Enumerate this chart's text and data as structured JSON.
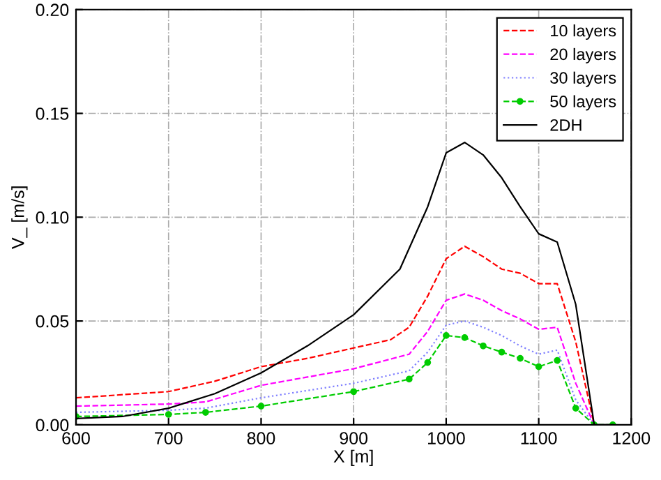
{
  "chart_data": {
    "type": "line",
    "xlabel": "X [m]",
    "ylabel": "V_ [m/s]",
    "xlim": [
      600,
      1200
    ],
    "ylim": [
      0,
      0.2
    ],
    "xticks": [
      600,
      700,
      800,
      900,
      1000,
      1100,
      1200
    ],
    "yticks": [
      {
        "value": 0,
        "label": "0.00"
      },
      {
        "value": 0.05,
        "label": "0.05"
      },
      {
        "value": 0.1,
        "label": "0.10"
      },
      {
        "value": 0.15,
        "label": "0.15"
      },
      {
        "value": 0.2,
        "label": "0.20"
      }
    ],
    "grid": true,
    "legend": "top right",
    "series": [
      {
        "name": "10 layers",
        "color": "#ff0000",
        "line_style": "dashed",
        "x": [
          600,
          700,
          750,
          800,
          850,
          900,
          940,
          960,
          980,
          1000,
          1020,
          1040,
          1060,
          1080,
          1100,
          1120,
          1140,
          1160
        ],
        "values": [
          0.013,
          0.016,
          0.021,
          0.028,
          0.032,
          0.037,
          0.041,
          0.047,
          0.062,
          0.08,
          0.086,
          0.081,
          0.075,
          0.073,
          0.068,
          0.068,
          0.04,
          0
        ]
      },
      {
        "name": "20 layers",
        "color": "#ff00ff",
        "line_style": "dashed",
        "x": [
          600,
          700,
          740,
          800,
          900,
          960,
          980,
          1000,
          1020,
          1040,
          1060,
          1080,
          1100,
          1120,
          1140,
          1160
        ],
        "values": [
          0.009,
          0.01,
          0.011,
          0.019,
          0.027,
          0.034,
          0.045,
          0.06,
          0.063,
          0.06,
          0.055,
          0.051,
          0.046,
          0.047,
          0.02,
          0
        ]
      },
      {
        "name": "30 layers",
        "color": "#8080ff",
        "line_style": "dotted",
        "x": [
          600,
          700,
          740,
          800,
          900,
          960,
          980,
          1000,
          1020,
          1040,
          1060,
          1080,
          1100,
          1120,
          1140,
          1160
        ],
        "values": [
          0.006,
          0.007,
          0.008,
          0.013,
          0.02,
          0.026,
          0.035,
          0.048,
          0.05,
          0.047,
          0.043,
          0.038,
          0.034,
          0.036,
          0.012,
          0
        ]
      },
      {
        "name": "50 layers",
        "color": "#00cc00",
        "line_style": "dashed",
        "marker": "circle",
        "x": [
          600,
          700,
          740,
          800,
          900,
          960,
          980,
          1000,
          1020,
          1040,
          1060,
          1080,
          1100,
          1120,
          1140,
          1160,
          1180
        ],
        "values": [
          0.004,
          0.005,
          0.006,
          0.009,
          0.016,
          0.022,
          0.03,
          0.043,
          0.042,
          0.038,
          0.035,
          0.032,
          0.028,
          0.031,
          0.008,
          0,
          0
        ]
      },
      {
        "name": "2DH",
        "color": "#000000",
        "line_style": "solid",
        "x": [
          600,
          650,
          700,
          750,
          800,
          850,
          900,
          950,
          980,
          1000,
          1020,
          1040,
          1060,
          1080,
          1100,
          1120,
          1140,
          1160,
          1180
        ],
        "values": [
          0.003,
          0.004,
          0.008,
          0.015,
          0.025,
          0.038,
          0.053,
          0.075,
          0.105,
          0.131,
          0.136,
          0.13,
          0.119,
          0.105,
          0.092,
          0.088,
          0.058,
          0,
          0
        ]
      }
    ]
  }
}
